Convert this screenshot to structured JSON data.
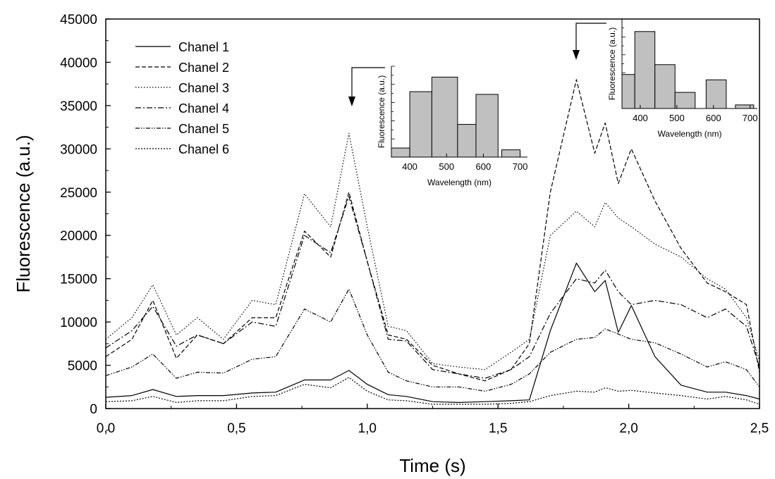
{
  "chart_data": [
    {
      "type": "line",
      "title": "",
      "xlabel": "Time (s)",
      "ylabel": "Fluorescence (a.u.)",
      "xlim": [
        0.0,
        2.5
      ],
      "ylim": [
        0,
        45000
      ],
      "x_ticks": [
        "0,0",
        "0,5",
        "1,0",
        "1,5",
        "2,0",
        "2,5"
      ],
      "y_ticks": [
        "0",
        "5000",
        "10000",
        "15000",
        "20000",
        "25000",
        "30000",
        "35000",
        "40000",
        "45000"
      ],
      "grid": false,
      "legend_position": "top-left",
      "x": [
        0.0,
        0.1,
        0.18,
        0.27,
        0.35,
        0.45,
        0.56,
        0.65,
        0.76,
        0.86,
        0.93,
        1.0,
        1.08,
        1.15,
        1.25,
        1.35,
        1.45,
        1.55,
        1.62,
        1.7,
        1.8,
        1.87,
        1.91,
        1.96,
        2.01,
        2.1,
        2.2,
        2.3,
        2.37,
        2.45,
        2.5
      ],
      "series": [
        {
          "name": "Chanel 1",
          "dash": "solid",
          "values": [
            1300,
            1500,
            2200,
            1400,
            1500,
            1500,
            1800,
            1900,
            3300,
            3300,
            4400,
            2800,
            1600,
            1400,
            800,
            700,
            800,
            900,
            1000,
            9000,
            16800,
            13500,
            14800,
            8800,
            11900,
            6000,
            2700,
            1900,
            1900,
            1500,
            1100
          ]
        },
        {
          "name": "Chanel 2",
          "dash": "dashed",
          "values": [
            6000,
            8000,
            12500,
            5800,
            8500,
            7500,
            10500,
            10500,
            20500,
            17500,
            25000,
            17000,
            8500,
            8000,
            5000,
            4000,
            3200,
            4500,
            7500,
            25000,
            38000,
            29500,
            33000,
            26000,
            30000,
            24000,
            18500,
            14500,
            13500,
            12000,
            4200
          ]
        },
        {
          "name": "Chanel 3",
          "dash": "dotted",
          "values": [
            8000,
            10500,
            14300,
            8500,
            10500,
            8000,
            12500,
            12000,
            24800,
            21000,
            31800,
            21000,
            9500,
            9000,
            5200,
            4800,
            4500,
            6500,
            8000,
            20000,
            22800,
            21000,
            23800,
            22000,
            21000,
            19000,
            17500,
            15000,
            13800,
            10500,
            5500
          ]
        },
        {
          "name": "Chanel 4",
          "dash": "dashdot",
          "values": [
            7000,
            9000,
            11800,
            7200,
            8500,
            7500,
            10000,
            9500,
            20000,
            18000,
            24500,
            17000,
            8000,
            7800,
            4500,
            4000,
            3500,
            4500,
            6000,
            11000,
            15000,
            14500,
            16000,
            13500,
            12000,
            12500,
            12000,
            10500,
            11500,
            9500,
            4800
          ]
        },
        {
          "name": "Chanel 5",
          "dash": "dashdotdot",
          "values": [
            3800,
            4800,
            6300,
            3500,
            4200,
            4100,
            5700,
            6000,
            11500,
            10000,
            13800,
            8500,
            4200,
            3200,
            2500,
            2500,
            2000,
            2800,
            4000,
            6500,
            8000,
            8200,
            9200,
            8600,
            8000,
            7600,
            6300,
            4800,
            5400,
            4500,
            2500
          ]
        },
        {
          "name": "Chanel 6",
          "dash": "shortdot",
          "values": [
            800,
            900,
            1400,
            700,
            900,
            900,
            1400,
            1500,
            2800,
            2400,
            3600,
            2000,
            1000,
            900,
            500,
            500,
            500,
            600,
            800,
            1500,
            2000,
            1900,
            2400,
            2000,
            2100,
            1800,
            1500,
            1100,
            1400,
            1000,
            500
          ]
        }
      ]
    },
    {
      "type": "bar",
      "title": "",
      "xlabel": "Wavelength (nm)",
      "ylabel": "Fluorescence (a.u.)",
      "xlim": [
        350,
        720
      ],
      "ylim": [
        0,
        1
      ],
      "x_ticks": [
        "400",
        "500",
        "600",
        "700"
      ],
      "bars": [
        {
          "start": 350,
          "end": 400,
          "value": 0.1
        },
        {
          "start": 400,
          "end": 460,
          "value": 0.72
        },
        {
          "start": 460,
          "end": 530,
          "value": 0.88
        },
        {
          "start": 530,
          "end": 580,
          "value": 0.36
        },
        {
          "start": 580,
          "end": 640,
          "value": 0.69
        },
        {
          "start": 650,
          "end": 700,
          "value": 0.08
        }
      ],
      "marker": "arrow pointing to channel peak at t ≈ 0,93 s"
    },
    {
      "type": "bar",
      "title": "",
      "xlabel": "Wavelength (nm)",
      "ylabel": "Fluorescence (a.u.)",
      "xlim": [
        350,
        720
      ],
      "ylim": [
        0,
        1
      ],
      "x_ticks": [
        "400",
        "500",
        "600",
        "700"
      ],
      "bars": [
        {
          "start": 350,
          "end": 385,
          "value": 0.38
        },
        {
          "start": 385,
          "end": 440,
          "value": 0.86
        },
        {
          "start": 440,
          "end": 495,
          "value": 0.49
        },
        {
          "start": 495,
          "end": 550,
          "value": 0.18
        },
        {
          "start": 580,
          "end": 635,
          "value": 0.32
        },
        {
          "start": 660,
          "end": 710,
          "value": 0.04
        }
      ],
      "marker": "arrow pointing to channel peak at t ≈ 1,78 s"
    }
  ]
}
